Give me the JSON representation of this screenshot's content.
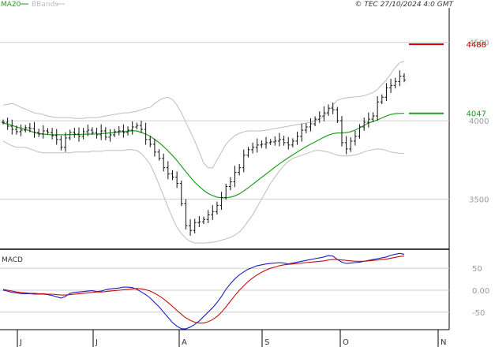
{
  "header": {
    "legend_ma": "MA20",
    "legend_bb": "BBands",
    "copyright": "© TEC 27/10/2024 4:0 GMT"
  },
  "macd_panel": {
    "title": "MACD"
  },
  "colors": {
    "ma": "#1fa01f",
    "bands": "#bdbdbd",
    "price_bars": "#111111",
    "resistance": "#cc0000",
    "support": "#1fa01f",
    "macd_line": "#1f1fbf",
    "signal_line": "#c01010",
    "grid": "#cfcfcf"
  },
  "chart_data": [
    {
      "type": "ohlc",
      "ylim": [
        3180,
        4720
      ],
      "y_ticks": [
        {
          "value": 3500,
          "label": "3500"
        },
        {
          "value": 4000,
          "label": "4000"
        },
        {
          "value": 4500,
          "label": "4500"
        }
      ],
      "x_ticks": [
        "J",
        "J",
        "A",
        "S",
        "O",
        "N"
      ],
      "x_tick_dates": [
        "2024-06-01",
        "2024-07-01",
        "2024-08-01",
        "2024-09-01",
        "2024-10-01",
        "2024-11-01"
      ],
      "levels": [
        {
          "name": "resistance",
          "value": 4488,
          "label": "4488"
        },
        {
          "name": "support",
          "value": 4047,
          "label": "4047"
        }
      ],
      "close_series": [
        3990,
        3965,
        3945,
        3930,
        3940,
        3955,
        3950,
        3925,
        3915,
        3935,
        3925,
        3905,
        3880,
        3830,
        3890,
        3925,
        3915,
        3900,
        3930,
        3940,
        3925,
        3910,
        3935,
        3895,
        3910,
        3930,
        3935,
        3925,
        3940,
        3960,
        3970,
        3945,
        3880,
        3850,
        3800,
        3760,
        3700,
        3660,
        3640,
        3600,
        3470,
        3330,
        3300,
        3350,
        3355,
        3370,
        3400,
        3420,
        3460,
        3510,
        3580,
        3610,
        3670,
        3700,
        3780,
        3815,
        3830,
        3845,
        3850,
        3860,
        3865,
        3870,
        3880,
        3860,
        3845,
        3870,
        3900,
        3940,
        3960,
        3980,
        4010,
        4030,
        4050,
        4080,
        4070,
        4000,
        3860,
        3820,
        3870,
        3900,
        3960,
        3990,
        4010,
        4030,
        4120,
        4150,
        4210,
        4225,
        4250,
        4285,
        4260
      ],
      "ma20": [
        3985,
        3978,
        3970,
        3960,
        3952,
        3945,
        3935,
        3925,
        3918,
        3915,
        3912,
        3910,
        3910,
        3910,
        3910,
        3912,
        3912,
        3912,
        3913,
        3915,
        3915,
        3916,
        3918,
        3920,
        3922,
        3925,
        3928,
        3930,
        3933,
        3936,
        3935,
        3925,
        3915,
        3900,
        3880,
        3860,
        3835,
        3808,
        3778,
        3746,
        3710,
        3674,
        3640,
        3608,
        3580,
        3556,
        3536,
        3522,
        3512,
        3508,
        3508,
        3512,
        3520,
        3534,
        3552,
        3572,
        3594,
        3616,
        3638,
        3660,
        3682,
        3704,
        3725,
        3745,
        3764,
        3782,
        3800,
        3818,
        3835,
        3850,
        3865,
        3880,
        3895,
        3908,
        3918,
        3922,
        3922,
        3924,
        3930,
        3940,
        3955,
        3970,
        3985,
        3995,
        4005,
        4018,
        4030,
        4040,
        4045,
        4047,
        4047
      ],
      "bb_upper": [
        4100,
        4105,
        4110,
        4100,
        4085,
        4075,
        4060,
        4050,
        4045,
        4040,
        4030,
        4025,
        4020,
        4020,
        4020,
        4020,
        4015,
        4015,
        4015,
        4020,
        4020,
        4020,
        4025,
        4030,
        4035,
        4040,
        4045,
        4050,
        4050,
        4055,
        4060,
        4070,
        4080,
        4085,
        4110,
        4130,
        4145,
        4150,
        4135,
        4100,
        4050,
        3990,
        3930,
        3870,
        3800,
        3730,
        3700,
        3700,
        3750,
        3800,
        3850,
        3880,
        3905,
        3920,
        3930,
        3935,
        3935,
        3935,
        3935,
        3940,
        3945,
        3950,
        3955,
        3960,
        3965,
        3970,
        3975,
        3980,
        3985,
        3990,
        4000,
        4010,
        4030,
        4060,
        4100,
        4130,
        4140,
        4145,
        4150,
        4152,
        4155,
        4160,
        4170,
        4180,
        4200,
        4230,
        4260,
        4300,
        4340,
        4370,
        4380
      ],
      "bb_lower": [
        3870,
        3855,
        3840,
        3830,
        3830,
        3830,
        3820,
        3810,
        3800,
        3795,
        3795,
        3795,
        3795,
        3795,
        3795,
        3795,
        3800,
        3800,
        3800,
        3800,
        3805,
        3805,
        3805,
        3810,
        3810,
        3810,
        3810,
        3810,
        3815,
        3815,
        3810,
        3790,
        3760,
        3720,
        3660,
        3590,
        3520,
        3450,
        3380,
        3320,
        3280,
        3250,
        3230,
        3220,
        3220,
        3220,
        3222,
        3225,
        3230,
        3238,
        3246,
        3256,
        3270,
        3290,
        3320,
        3360,
        3400,
        3450,
        3500,
        3550,
        3600,
        3640,
        3680,
        3715,
        3740,
        3760,
        3770,
        3780,
        3790,
        3800,
        3810,
        3810,
        3805,
        3800,
        3790,
        3780,
        3775,
        3775,
        3778,
        3782,
        3790,
        3800,
        3810,
        3815,
        3820,
        3818,
        3810,
        3800,
        3795,
        3792,
        3790
      ]
    },
    {
      "type": "line",
      "title": "MACD",
      "ylim": [
        -90,
        90
      ],
      "y_ticks": [
        {
          "value": 50,
          "label": "50"
        },
        {
          "value": 0,
          "label": "0.00"
        },
        {
          "value": -50,
          "label": "-50"
        }
      ],
      "series": [
        {
          "name": "MACD",
          "values": [
            0,
            -2,
            -5,
            -6,
            -8,
            -8,
            -8,
            -9,
            -9,
            -9,
            -10,
            -12,
            -15,
            -18,
            -14,
            -7,
            -5,
            -4,
            -3,
            -2,
            -1,
            -3,
            -2,
            1,
            3,
            4,
            5,
            7,
            7,
            6,
            2,
            -4,
            -10,
            -18,
            -28,
            -38,
            -50,
            -62,
            -74,
            -82,
            -88,
            -88,
            -84,
            -78,
            -70,
            -60,
            -50,
            -40,
            -28,
            -14,
            2,
            15,
            26,
            35,
            42,
            48,
            52,
            56,
            58,
            60,
            61,
            62,
            63,
            62,
            60,
            62,
            64,
            66,
            68,
            70,
            72,
            74,
            76,
            79,
            78,
            70,
            64,
            61,
            62,
            63,
            64,
            66,
            68,
            70,
            72,
            74,
            76,
            80,
            82,
            84,
            82
          ]
        },
        {
          "name": "Signal",
          "values": [
            2,
            0,
            -2,
            -4,
            -5,
            -6,
            -7,
            -7,
            -8,
            -8,
            -9,
            -9,
            -10,
            -11,
            -11,
            -10,
            -9,
            -8,
            -7,
            -6,
            -5,
            -4,
            -4,
            -3,
            -2,
            -1,
            0,
            1,
            2,
            3,
            4,
            3,
            1,
            -2,
            -7,
            -13,
            -20,
            -28,
            -37,
            -46,
            -55,
            -63,
            -69,
            -73,
            -75,
            -75,
            -72,
            -67,
            -60,
            -50,
            -38,
            -25,
            -12,
            0,
            10,
            20,
            28,
            35,
            41,
            46,
            50,
            53,
            56,
            58,
            59,
            60,
            61,
            62,
            63,
            64,
            65,
            66,
            67,
            69,
            70,
            70,
            69,
            68,
            67,
            66,
            66,
            66,
            67,
            68,
            69,
            70,
            71,
            73,
            75,
            77,
            78
          ]
        }
      ]
    }
  ]
}
